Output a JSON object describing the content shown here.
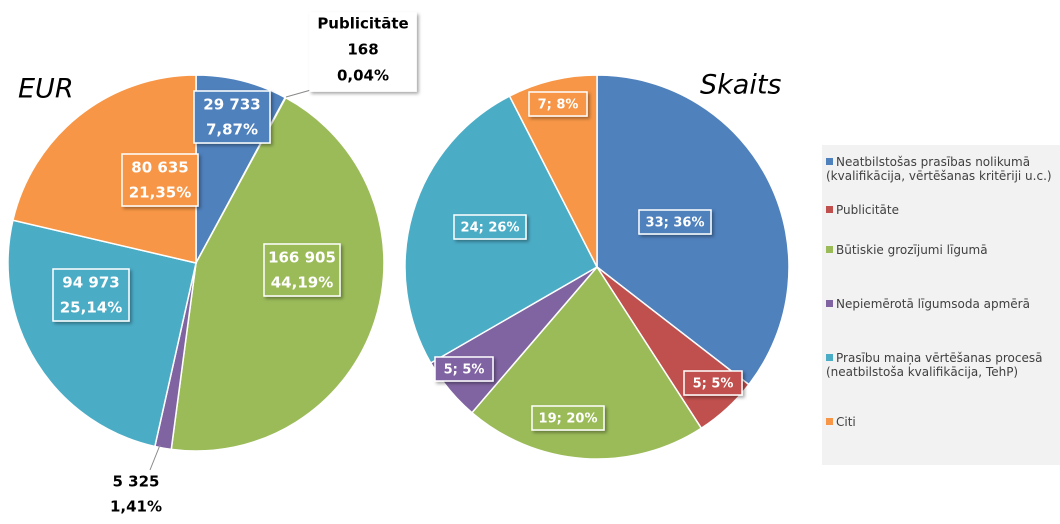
{
  "chart_data": [
    {
      "type": "pie",
      "title": "EUR",
      "values": [
        29733,
        168,
        166905,
        5325,
        94973,
        80635
      ],
      "value_labels": [
        "29 733",
        "168",
        "166 905",
        "5 325",
        "94 973",
        "80 635"
      ],
      "percents": [
        7.87,
        0.04,
        44.19,
        1.41,
        25.14,
        21.35
      ],
      "percent_labels": [
        "7,87%",
        "0,04%",
        "44,19%",
        "1,41%",
        "25,14%",
        "21,35%"
      ]
    },
    {
      "type": "pie",
      "title": "Skaits",
      "values": [
        33,
        5,
        19,
        5,
        24,
        7
      ],
      "percents": [
        36,
        5,
        20,
        5,
        26,
        8
      ],
      "value_labels": [
        "33; 36%",
        "5; 5%",
        "19; 20%",
        "5; 5%",
        "24; 26%",
        "7; 8%"
      ]
    }
  ],
  "legend": {
    "labels": [
      "Neatbilstošas prasības nolikumā (kvalifikācija, vērtēšanas kritēriji u.c.)",
      "Publicitāte",
      "Būtiskie grozījumi līgumā",
      "Nepiemērotā līgumsoda  apmērā",
      "Prasību maiņa vērtēšanas procesā (neatbilstoša kvalifikācija, TehP)",
      "Citi"
    ],
    "colors": [
      "#4f81bd",
      "#c0504d",
      "#9bbb59",
      "#8064a2",
      "#4bacc6",
      "#f79646"
    ]
  }
}
